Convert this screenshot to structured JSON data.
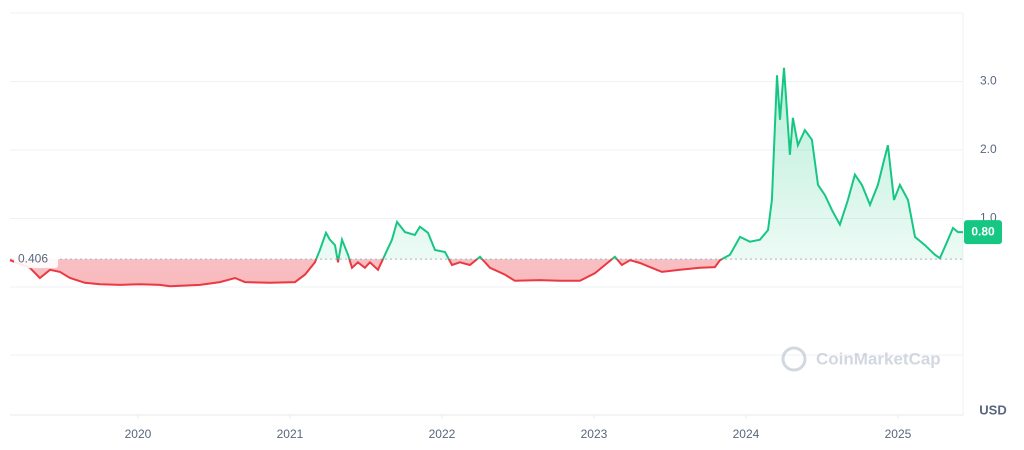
{
  "chart_data": {
    "type": "line",
    "brand": "CoinMarketCap",
    "currency": "USD",
    "baseline": 0.406,
    "current_price_label": "0.80",
    "up_color": "#16c784",
    "down_color": "#ea3943",
    "x": [
      2019.158,
      2019.289,
      2019.355,
      2019.421,
      2019.487,
      2019.553,
      2019.651,
      2019.75,
      2019.882,
      2020.013,
      2020.145,
      2020.211,
      2020.408,
      2020.539,
      2020.638,
      2020.704,
      2020.868,
      2021.033,
      2021.099,
      2021.164,
      2021.197,
      2021.237,
      2021.263,
      2021.296,
      2021.316,
      2021.342,
      2021.382,
      2021.408,
      2021.447,
      2021.493,
      2021.526,
      2021.579,
      2021.625,
      2021.671,
      2021.704,
      2021.757,
      2021.822,
      2021.855,
      2021.908,
      2021.954,
      2022.02,
      2022.066,
      2022.118,
      2022.184,
      2022.25,
      2022.316,
      2022.414,
      2022.48,
      2022.645,
      2022.776,
      2022.908,
      2023.007,
      2023.072,
      2023.138,
      2023.184,
      2023.237,
      2023.303,
      2023.368,
      2023.447,
      2023.566,
      2023.697,
      2023.796,
      2023.829,
      2023.895,
      2023.961,
      2024.026,
      2024.092,
      2024.145,
      2024.171,
      2024.204,
      2024.224,
      2024.25,
      2024.289,
      2024.309,
      2024.342,
      2024.388,
      2024.434,
      2024.474,
      2024.52,
      2024.566,
      2024.618,
      2024.671,
      2024.717,
      2024.763,
      2024.816,
      2024.868,
      2024.908,
      2024.934,
      2024.974,
      2025.013,
      2025.066,
      2025.112,
      2025.178,
      2025.243,
      2025.276,
      2025.329,
      2025.362,
      2025.395,
      2025.428
    ],
    "values": [
      0.39,
      0.28,
      0.13,
      0.25,
      0.22,
      0.13,
      0.06,
      0.04,
      0.03,
      0.04,
      0.03,
      0.01,
      0.03,
      0.07,
      0.13,
      0.07,
      0.06,
      0.07,
      0.18,
      0.36,
      0.54,
      0.79,
      0.69,
      0.61,
      0.36,
      0.69,
      0.47,
      0.28,
      0.36,
      0.28,
      0.36,
      0.25,
      0.47,
      0.69,
      0.95,
      0.8,
      0.76,
      0.88,
      0.79,
      0.54,
      0.51,
      0.32,
      0.36,
      0.32,
      0.44,
      0.28,
      0.18,
      0.09,
      0.1,
      0.09,
      0.09,
      0.2,
      0.32,
      0.44,
      0.32,
      0.39,
      0.35,
      0.29,
      0.22,
      0.25,
      0.28,
      0.29,
      0.39,
      0.47,
      0.73,
      0.66,
      0.69,
      0.83,
      1.27,
      3.09,
      2.44,
      3.2,
      1.93,
      2.47,
      2.07,
      2.29,
      2.15,
      1.49,
      1.34,
      1.12,
      0.91,
      1.27,
      1.64,
      1.49,
      1.2,
      1.49,
      1.85,
      2.07,
      1.27,
      1.49,
      1.27,
      0.73,
      0.61,
      0.47,
      0.42,
      0.69,
      0.86,
      0.8,
      0.8
    ],
    "xlim": [
      2019.158,
      2025.428
    ],
    "xticks": [
      2020,
      2021,
      2022,
      2023,
      2024,
      2025
    ],
    "ylim": [
      -1.87,
      4.0
    ],
    "yticks": [
      {
        "value": 1,
        "label": "1.0"
      },
      {
        "value": 2,
        "label": "2.0"
      },
      {
        "value": 3,
        "label": "3.0"
      }
    ],
    "grid": true
  }
}
